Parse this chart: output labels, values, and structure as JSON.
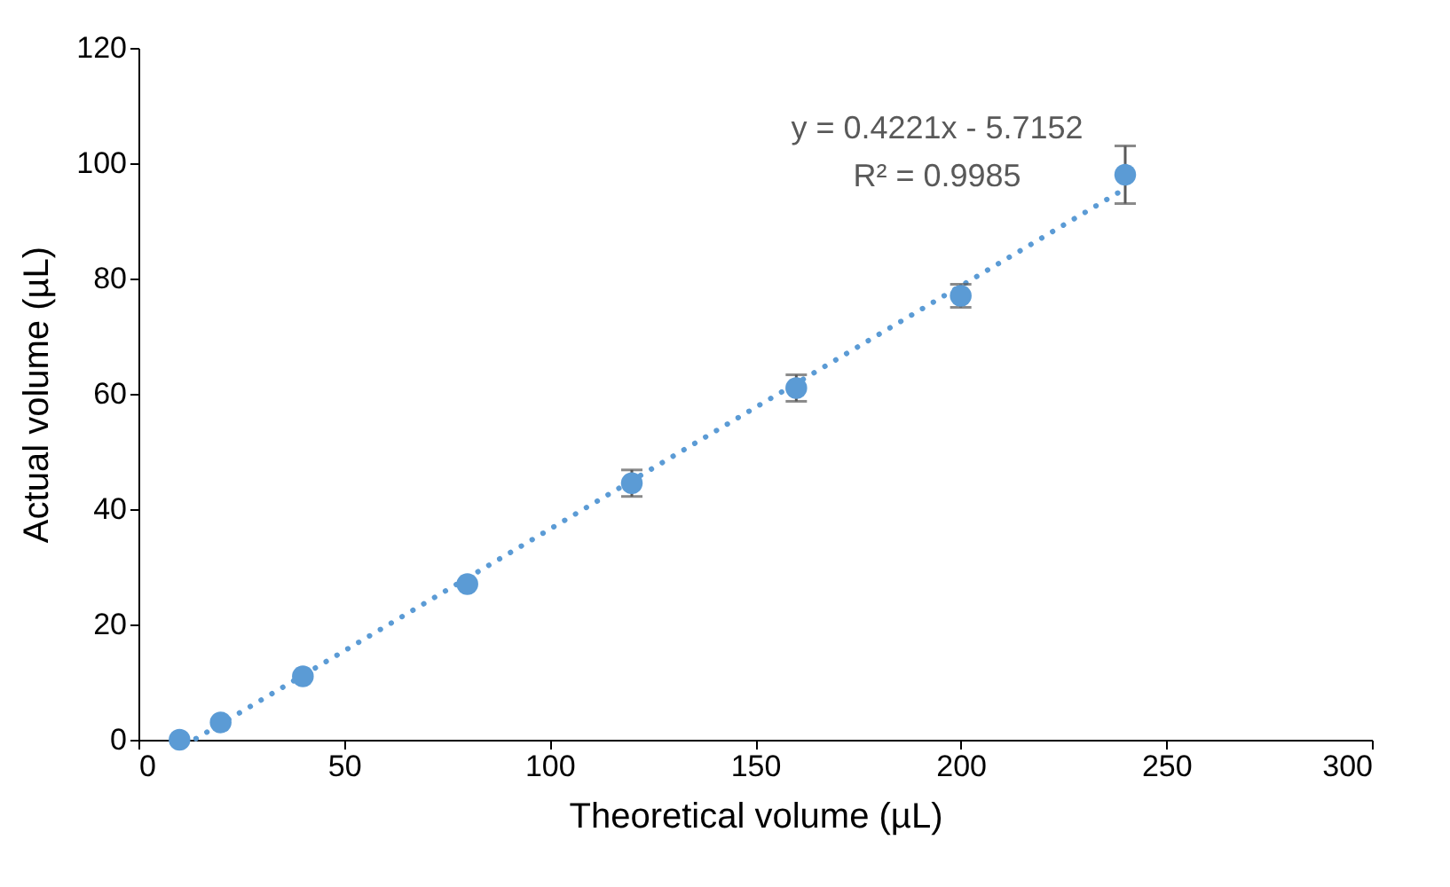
{
  "chart_data": {
    "type": "scatter",
    "xlabel": "Theoretical volume (µL)",
    "ylabel": "Actual volume (µL)",
    "xlim": [
      0,
      300
    ],
    "xticks": [
      0,
      50,
      100,
      150,
      200,
      250,
      300
    ],
    "ylim": [
      0,
      120
    ],
    "yticks": [
      0,
      20,
      40,
      60,
      80,
      100,
      120
    ],
    "grid": false,
    "annotations": [
      "y = 0.4221x - 5.7152",
      "R² = 0.9985"
    ],
    "series": [
      {
        "color": "#5b9bd5",
        "marker": "circle",
        "x": [
          10,
          20,
          40,
          80,
          120,
          160,
          200,
          240
        ],
        "values": [
          0,
          3,
          11,
          27,
          44.5,
          61,
          77,
          98
        ],
        "errors": [
          null,
          null,
          null,
          null,
          2.3,
          2.3,
          2,
          [
            93,
            103
          ]
        ]
      },
      {
        "type": "line",
        "color": "#5b9bd5",
        "line_style": "dotted",
        "x": [
          14,
          240
        ],
        "values": [
          0.2,
          95.6
        ]
      }
    ]
  }
}
